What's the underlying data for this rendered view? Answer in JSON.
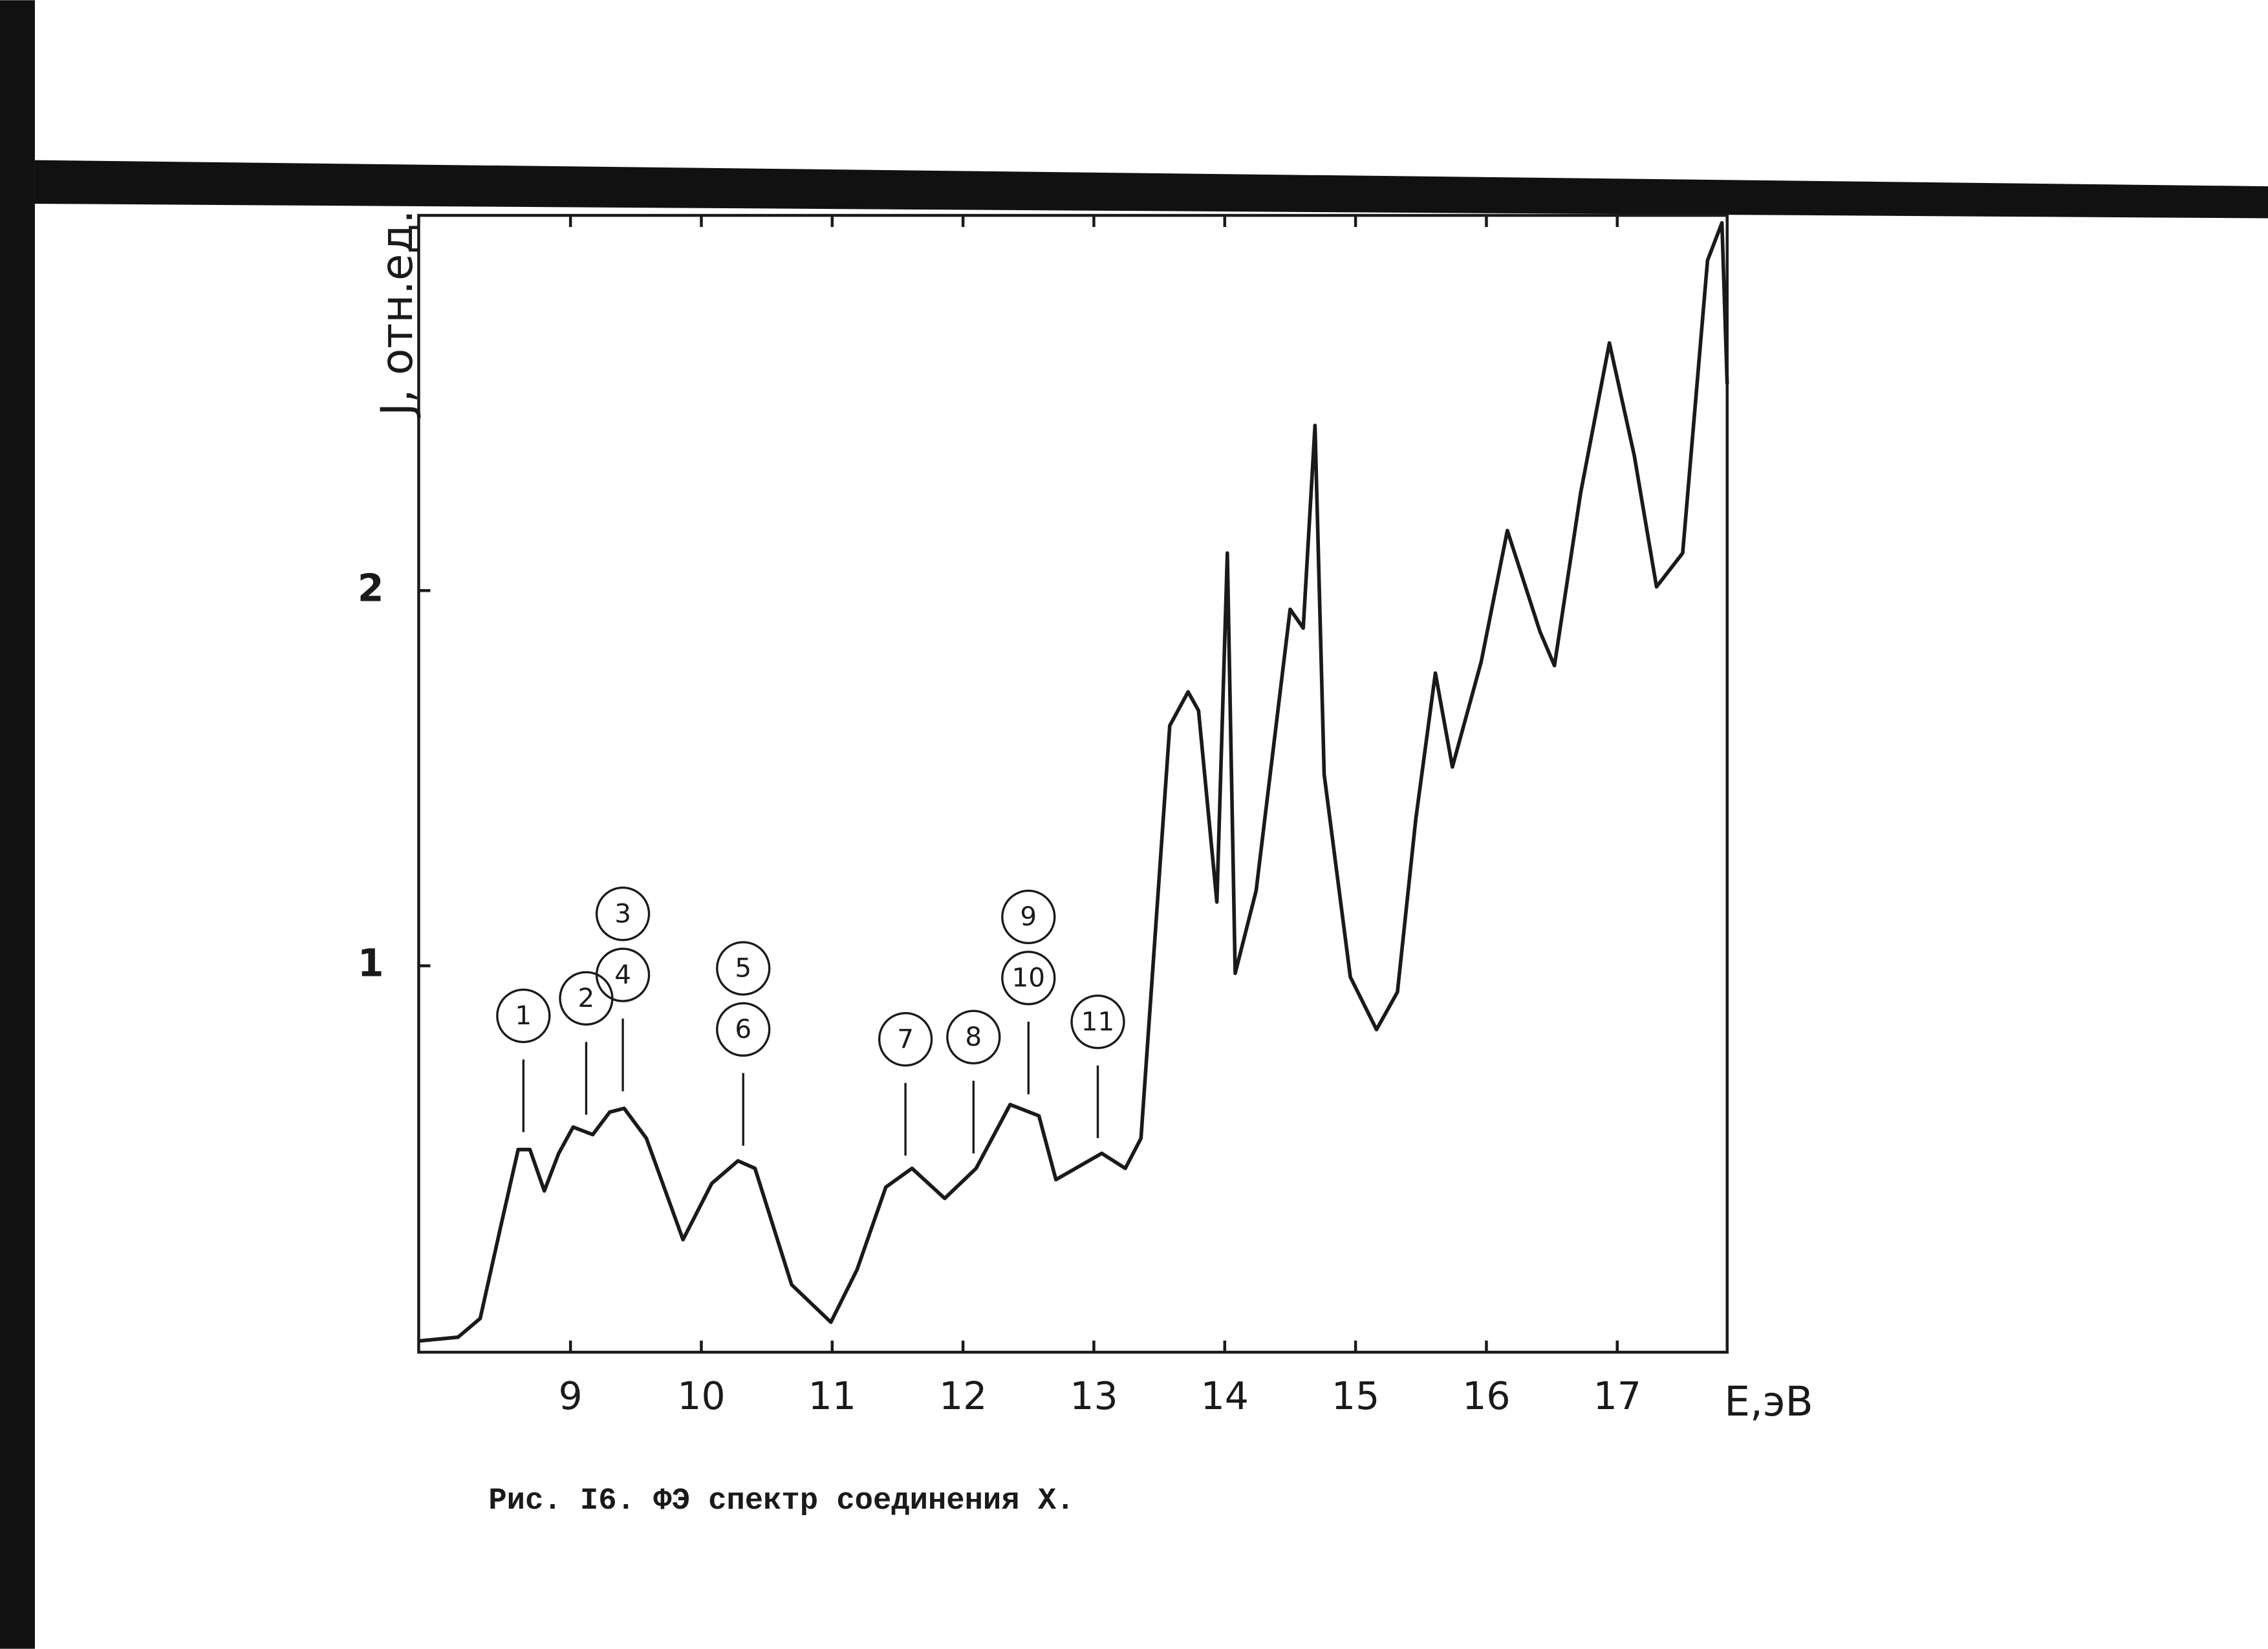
{
  "chart_data": {
    "type": "line",
    "y_label": "J, отн.ед.",
    "x_label": "Е,эВ",
    "caption": "Рис. I6.  ФЭ спектр соединения Х.",
    "color": "#1a1a1a",
    "xlim": [
      7.84,
      17.84
    ],
    "ylim": [
      -0.03,
      3.0
    ],
    "xticks": [
      9,
      10,
      11,
      12,
      13,
      14,
      15,
      16,
      17
    ],
    "yticks": [
      1,
      2
    ],
    "x": [
      7.84,
      8.14,
      8.31,
      8.47,
      8.6,
      8.69,
      8.8,
      8.91,
      9.02,
      9.17,
      9.3,
      9.41,
      9.58,
      9.86,
      10.08,
      10.28,
      10.41,
      10.69,
      10.99,
      11.19,
      11.41,
      11.61,
      11.86,
      12.1,
      12.36,
      12.58,
      12.71,
      12.91,
      13.06,
      13.24,
      13.36,
      13.58,
      13.72,
      13.8,
      13.94,
      14.02,
      14.08,
      14.24,
      14.5,
      14.6,
      14.69,
      14.76,
      14.96,
      15.16,
      15.32,
      15.46,
      15.61,
      15.74,
      15.96,
      16.16,
      16.41,
      16.52,
      16.72,
      16.94,
      17.13,
      17.3,
      17.5,
      17.69,
      17.8,
      17.84
    ],
    "values": [
      0,
      0.01,
      0.06,
      0.31,
      0.51,
      0.51,
      0.4,
      0.5,
      0.57,
      0.55,
      0.61,
      0.62,
      0.54,
      0.27,
      0.42,
      0.48,
      0.46,
      0.15,
      0.05,
      0.19,
      0.41,
      0.46,
      0.38,
      0.46,
      0.63,
      0.6,
      0.43,
      0.47,
      0.5,
      0.46,
      0.54,
      1.64,
      1.73,
      1.68,
      1.17,
      2.1,
      0.98,
      1.2,
      1.95,
      1.9,
      2.44,
      1.51,
      0.97,
      0.83,
      0.93,
      1.39,
      1.78,
      1.53,
      1.81,
      2.16,
      1.89,
      1.8,
      2.26,
      2.66,
      2.36,
      2.01,
      2.1,
      2.88,
      2.98,
      2.55
    ],
    "annotations": [
      {
        "x": 8.64,
        "labels": [
          "1"
        ]
      },
      {
        "x": 9.12,
        "labels": [
          "2"
        ]
      },
      {
        "x": 9.4,
        "labels": [
          "4",
          "3"
        ]
      },
      {
        "x": 10.32,
        "labels": [
          "6",
          "5"
        ]
      },
      {
        "x": 11.56,
        "labels": [
          "7"
        ]
      },
      {
        "x": 12.08,
        "labels": [
          "8"
        ]
      },
      {
        "x": 12.5,
        "labels": [
          "10",
          "9"
        ]
      },
      {
        "x": 13.03,
        "labels": [
          "11"
        ]
      }
    ]
  }
}
